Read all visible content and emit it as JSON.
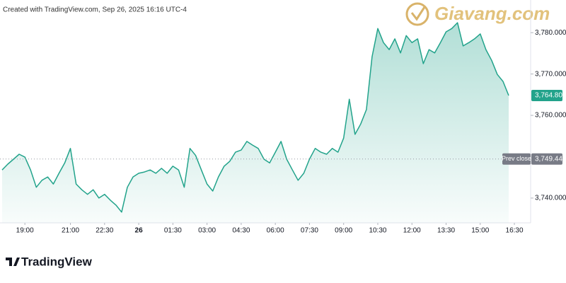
{
  "header": "Created with TradingView.com, Sep 26, 2025 16:16 UTC-4",
  "watermark": "Giavang.com",
  "footer": "TradingView",
  "chart_data": {
    "type": "area",
    "color": "#22a38b",
    "x": [
      "18:00",
      "18:15",
      "18:30",
      "18:45",
      "19:00",
      "19:15",
      "19:30",
      "19:45",
      "20:00",
      "20:15",
      "20:30",
      "20:45",
      "21:00",
      "21:15",
      "21:30",
      "21:45",
      "22:00",
      "22:15",
      "22:30",
      "22:45",
      "23:00",
      "23:15",
      "23:30",
      "23:45",
      "00:00",
      "00:15",
      "00:30",
      "00:45",
      "01:00",
      "01:15",
      "01:30",
      "01:45",
      "02:00",
      "02:15",
      "02:30",
      "02:45",
      "03:00",
      "03:15",
      "03:30",
      "03:45",
      "04:00",
      "04:15",
      "04:30",
      "04:45",
      "05:00",
      "05:15",
      "05:30",
      "05:45",
      "06:00",
      "06:15",
      "06:30",
      "06:45",
      "07:00",
      "07:15",
      "07:30",
      "07:45",
      "08:00",
      "08:15",
      "08:30",
      "08:45",
      "09:00",
      "09:15",
      "09:30",
      "09:45",
      "10:00",
      "10:15",
      "10:30",
      "10:45",
      "11:00",
      "11:15",
      "11:30",
      "11:45",
      "12:00",
      "12:15",
      "12:30",
      "12:45",
      "13:00",
      "13:15",
      "13:30",
      "13:45",
      "14:00",
      "14:15",
      "14:30",
      "14:45",
      "15:00",
      "15:15",
      "15:30",
      "15:45",
      "16:00",
      "16:15"
    ],
    "values": [
      3746.8,
      3748.2,
      3749.4,
      3750.6,
      3749.9,
      3746.8,
      3742.6,
      3744.3,
      3745.1,
      3743.4,
      3746.0,
      3748.5,
      3752.0,
      3743.4,
      3742.0,
      3740.9,
      3742.0,
      3740.0,
      3740.9,
      3739.5,
      3738.3,
      3736.6,
      3742.6,
      3745.1,
      3746.0,
      3746.3,
      3746.8,
      3746.0,
      3747.2,
      3746.0,
      3747.7,
      3746.8,
      3742.6,
      3752.0,
      3750.3,
      3746.8,
      3743.4,
      3741.7,
      3745.1,
      3747.7,
      3748.9,
      3751.1,
      3751.6,
      3753.7,
      3752.8,
      3752.0,
      3749.4,
      3748.5,
      3751.1,
      3753.7,
      3749.4,
      3746.8,
      3744.3,
      3746.0,
      3749.4,
      3752.0,
      3751.1,
      3750.6,
      3752.0,
      3751.1,
      3754.5,
      3763.9,
      3755.4,
      3757.9,
      3761.4,
      3774.2,
      3781.0,
      3777.6,
      3775.9,
      3778.5,
      3775.1,
      3779.3,
      3777.6,
      3778.5,
      3772.5,
      3775.9,
      3775.1,
      3777.6,
      3780.2,
      3781.0,
      3782.4,
      3776.8,
      3777.6,
      3778.5,
      3779.7,
      3775.9,
      3773.3,
      3769.9,
      3768.2,
      3764.805
    ],
    "last_label": "3,764.805",
    "prev_close": {
      "value": 3749.44,
      "label": "3,749.440",
      "name": "Prev close"
    },
    "ylim": [
      3734.0,
      3787.9
    ],
    "yticks": [
      {
        "value": 3740,
        "label": "3,740.000"
      },
      {
        "value": 3760,
        "label": "3,760.000"
      },
      {
        "value": 3770,
        "label": "3,770.000"
      },
      {
        "value": 3780,
        "label": "3,780.000"
      }
    ],
    "xticks": [
      {
        "value": "19:00",
        "label": "19:00"
      },
      {
        "value": "21:00",
        "label": "21:00"
      },
      {
        "value": "22:30",
        "label": "22:30"
      },
      {
        "value": "00:00",
        "label": "26"
      },
      {
        "value": "01:30",
        "label": "01:30"
      },
      {
        "value": "03:00",
        "label": "03:00"
      },
      {
        "value": "04:30",
        "label": "04:30"
      },
      {
        "value": "06:00",
        "label": "06:00"
      },
      {
        "value": "07:30",
        "label": "07:30"
      },
      {
        "value": "09:00",
        "label": "09:00"
      },
      {
        "value": "10:30",
        "label": "10:30"
      },
      {
        "value": "12:00",
        "label": "12:00"
      },
      {
        "value": "13:30",
        "label": "13:30"
      },
      {
        "value": "15:00",
        "label": "15:00"
      },
      {
        "value": "16:30",
        "label": "16:30"
      }
    ]
  }
}
